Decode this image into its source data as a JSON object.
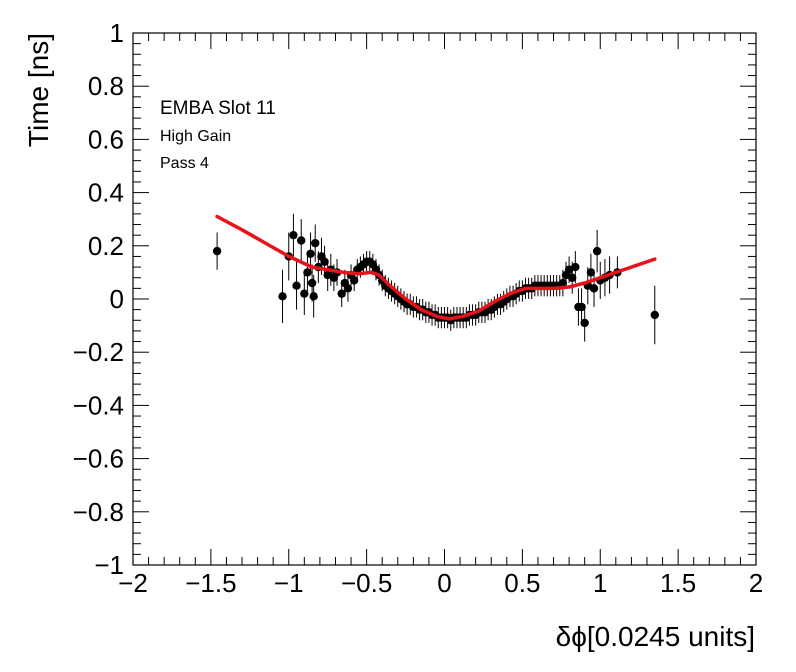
{
  "chart_data": {
    "type": "scatter",
    "xlabel": "δϕ[0.0245 units]",
    "ylabel": "Time [ns]",
    "xlim": [
      -2,
      2
    ],
    "ylim": [
      -1,
      1
    ],
    "x_ticks": [
      "−2",
      "−1.5",
      "−1",
      "−0.5",
      "0",
      "0.5",
      "1",
      "1.5",
      "2"
    ],
    "y_ticks": [
      "−1",
      "−0.8",
      "−0.6",
      "−0.4",
      "−0.2",
      "0",
      "0.2",
      "0.4",
      "0.6",
      "0.8",
      "1"
    ],
    "annotations": [
      "EMBA Slot 11",
      "High Gain",
      "Pass 4"
    ],
    "grid": false,
    "colors": {
      "points": "#000000",
      "fit": "#e8121a"
    },
    "points": [
      {
        "x": -1.46,
        "y": 0.18,
        "err": 0.07
      },
      {
        "x": -1.04,
        "y": 0.01,
        "err": 0.1
      },
      {
        "x": -1.0,
        "y": 0.16,
        "err": 0.09
      },
      {
        "x": -0.97,
        "y": 0.24,
        "err": 0.08
      },
      {
        "x": -0.95,
        "y": 0.05,
        "err": 0.09
      },
      {
        "x": -0.92,
        "y": 0.22,
        "err": 0.08
      },
      {
        "x": -0.9,
        "y": 0.02,
        "err": 0.08
      },
      {
        "x": -0.88,
        "y": 0.1,
        "err": 0.07
      },
      {
        "x": -0.86,
        "y": 0.17,
        "err": 0.08
      },
      {
        "x": -0.85,
        "y": 0.06,
        "err": 0.07
      },
      {
        "x": -0.84,
        "y": 0.01,
        "err": 0.08
      },
      {
        "x": -0.83,
        "y": 0.21,
        "err": 0.07
      },
      {
        "x": -0.81,
        "y": 0.12,
        "err": 0.06
      },
      {
        "x": -0.79,
        "y": 0.16,
        "err": 0.07
      },
      {
        "x": -0.77,
        "y": 0.14,
        "err": 0.06
      },
      {
        "x": -0.75,
        "y": 0.09,
        "err": 0.06
      },
      {
        "x": -0.73,
        "y": 0.11,
        "err": 0.06
      },
      {
        "x": -0.71,
        "y": 0.08,
        "err": 0.05
      },
      {
        "x": -0.69,
        "y": 0.1,
        "err": 0.05
      },
      {
        "x": -0.66,
        "y": 0.02,
        "err": 0.05
      },
      {
        "x": -0.64,
        "y": 0.06,
        "err": 0.05
      },
      {
        "x": -0.62,
        "y": 0.04,
        "err": 0.05
      },
      {
        "x": -0.6,
        "y": 0.09,
        "err": 0.04
      },
      {
        "x": -0.58,
        "y": 0.07,
        "err": 0.04
      },
      {
        "x": -0.56,
        "y": 0.11,
        "err": 0.04
      },
      {
        "x": -0.54,
        "y": 0.12,
        "err": 0.04
      },
      {
        "x": -0.52,
        "y": 0.13,
        "err": 0.04
      },
      {
        "x": -0.5,
        "y": 0.14,
        "err": 0.04
      },
      {
        "x": -0.48,
        "y": 0.14,
        "err": 0.04
      },
      {
        "x": -0.46,
        "y": 0.13,
        "err": 0.04
      },
      {
        "x": -0.44,
        "y": 0.11,
        "err": 0.04
      },
      {
        "x": -0.42,
        "y": 0.09,
        "err": 0.04
      },
      {
        "x": -0.4,
        "y": 0.07,
        "err": 0.04
      },
      {
        "x": -0.38,
        "y": 0.05,
        "err": 0.04
      },
      {
        "x": -0.36,
        "y": 0.04,
        "err": 0.04
      },
      {
        "x": -0.34,
        "y": 0.03,
        "err": 0.04
      },
      {
        "x": -0.32,
        "y": 0.02,
        "err": 0.04
      },
      {
        "x": -0.3,
        "y": 0.01,
        "err": 0.04
      },
      {
        "x": -0.28,
        "y": 0.0,
        "err": 0.04
      },
      {
        "x": -0.26,
        "y": -0.01,
        "err": 0.04
      },
      {
        "x": -0.24,
        "y": -0.02,
        "err": 0.04
      },
      {
        "x": -0.22,
        "y": -0.02,
        "err": 0.04
      },
      {
        "x": -0.2,
        "y": -0.03,
        "err": 0.04
      },
      {
        "x": -0.18,
        "y": -0.03,
        "err": 0.04
      },
      {
        "x": -0.16,
        "y": -0.04,
        "err": 0.04
      },
      {
        "x": -0.14,
        "y": -0.04,
        "err": 0.04
      },
      {
        "x": -0.12,
        "y": -0.05,
        "err": 0.04
      },
      {
        "x": -0.1,
        "y": -0.05,
        "err": 0.04
      },
      {
        "x": -0.08,
        "y": -0.06,
        "err": 0.04
      },
      {
        "x": -0.06,
        "y": -0.06,
        "err": 0.04
      },
      {
        "x": -0.04,
        "y": -0.07,
        "err": 0.04
      },
      {
        "x": -0.02,
        "y": -0.07,
        "err": 0.04
      },
      {
        "x": 0.0,
        "y": -0.07,
        "err": 0.04
      },
      {
        "x": 0.02,
        "y": -0.07,
        "err": 0.04
      },
      {
        "x": 0.04,
        "y": -0.08,
        "err": 0.04
      },
      {
        "x": 0.06,
        "y": -0.07,
        "err": 0.04
      },
      {
        "x": 0.08,
        "y": -0.07,
        "err": 0.04
      },
      {
        "x": 0.1,
        "y": -0.07,
        "err": 0.04
      },
      {
        "x": 0.12,
        "y": -0.07,
        "err": 0.04
      },
      {
        "x": 0.14,
        "y": -0.07,
        "err": 0.04
      },
      {
        "x": 0.16,
        "y": -0.06,
        "err": 0.04
      },
      {
        "x": 0.18,
        "y": -0.06,
        "err": 0.04
      },
      {
        "x": 0.2,
        "y": -0.06,
        "err": 0.04
      },
      {
        "x": 0.22,
        "y": -0.05,
        "err": 0.04
      },
      {
        "x": 0.24,
        "y": -0.05,
        "err": 0.04
      },
      {
        "x": 0.26,
        "y": -0.05,
        "err": 0.04
      },
      {
        "x": 0.28,
        "y": -0.04,
        "err": 0.04
      },
      {
        "x": 0.3,
        "y": -0.04,
        "err": 0.04
      },
      {
        "x": 0.32,
        "y": -0.03,
        "err": 0.04
      },
      {
        "x": 0.34,
        "y": -0.02,
        "err": 0.04
      },
      {
        "x": 0.36,
        "y": -0.02,
        "err": 0.04
      },
      {
        "x": 0.38,
        "y": -0.01,
        "err": 0.04
      },
      {
        "x": 0.4,
        "y": 0.0,
        "err": 0.04
      },
      {
        "x": 0.42,
        "y": 0.01,
        "err": 0.04
      },
      {
        "x": 0.44,
        "y": 0.01,
        "err": 0.04
      },
      {
        "x": 0.46,
        "y": 0.02,
        "err": 0.04
      },
      {
        "x": 0.48,
        "y": 0.03,
        "err": 0.04
      },
      {
        "x": 0.5,
        "y": 0.03,
        "err": 0.04
      },
      {
        "x": 0.52,
        "y": 0.04,
        "err": 0.04
      },
      {
        "x": 0.54,
        "y": 0.04,
        "err": 0.04
      },
      {
        "x": 0.56,
        "y": 0.04,
        "err": 0.04
      },
      {
        "x": 0.58,
        "y": 0.05,
        "err": 0.04
      },
      {
        "x": 0.6,
        "y": 0.05,
        "err": 0.04
      },
      {
        "x": 0.62,
        "y": 0.05,
        "err": 0.04
      },
      {
        "x": 0.64,
        "y": 0.05,
        "err": 0.04
      },
      {
        "x": 0.66,
        "y": 0.05,
        "err": 0.04
      },
      {
        "x": 0.68,
        "y": 0.05,
        "err": 0.04
      },
      {
        "x": 0.7,
        "y": 0.05,
        "err": 0.04
      },
      {
        "x": 0.72,
        "y": 0.05,
        "err": 0.04
      },
      {
        "x": 0.74,
        "y": 0.05,
        "err": 0.04
      },
      {
        "x": 0.76,
        "y": 0.06,
        "err": 0.05
      },
      {
        "x": 0.78,
        "y": 0.09,
        "err": 0.05
      },
      {
        "x": 0.8,
        "y": 0.11,
        "err": 0.05
      },
      {
        "x": 0.82,
        "y": 0.08,
        "err": 0.06
      },
      {
        "x": 0.84,
        "y": 0.12,
        "err": 0.06
      },
      {
        "x": 0.86,
        "y": -0.03,
        "err": 0.07
      },
      {
        "x": 0.88,
        "y": -0.03,
        "err": 0.07
      },
      {
        "x": 0.9,
        "y": -0.09,
        "err": 0.07
      },
      {
        "x": 0.92,
        "y": 0.05,
        "err": 0.07
      },
      {
        "x": 0.94,
        "y": 0.1,
        "err": 0.07
      },
      {
        "x": 0.96,
        "y": 0.04,
        "err": 0.07
      },
      {
        "x": 0.98,
        "y": 0.18,
        "err": 0.08
      },
      {
        "x": 1.0,
        "y": 0.07,
        "err": 0.07
      },
      {
        "x": 1.03,
        "y": 0.08,
        "err": 0.07
      },
      {
        "x": 1.06,
        "y": 0.09,
        "err": 0.07
      },
      {
        "x": 1.11,
        "y": 0.1,
        "err": 0.06
      },
      {
        "x": 1.35,
        "y": -0.06,
        "err": 0.11
      }
    ],
    "fit": {
      "x": [
        -1.46,
        -1.3,
        -1.15,
        -1.0,
        -0.85,
        -0.75,
        -0.65,
        -0.55,
        -0.47,
        -0.42,
        -0.35,
        -0.25,
        -0.15,
        -0.05,
        0.03,
        0.12,
        0.22,
        0.32,
        0.42,
        0.52,
        0.6,
        0.7,
        0.8,
        0.9,
        1.0,
        1.1,
        1.2,
        1.35
      ],
      "y": [
        0.31,
        0.26,
        0.21,
        0.16,
        0.12,
        0.11,
        0.1,
        0.095,
        0.1,
        0.09,
        0.05,
        0.0,
        -0.04,
        -0.065,
        -0.075,
        -0.065,
        -0.045,
        -0.01,
        0.02,
        0.04,
        0.04,
        0.04,
        0.045,
        0.06,
        0.08,
        0.1,
        0.12,
        0.15
      ]
    }
  }
}
